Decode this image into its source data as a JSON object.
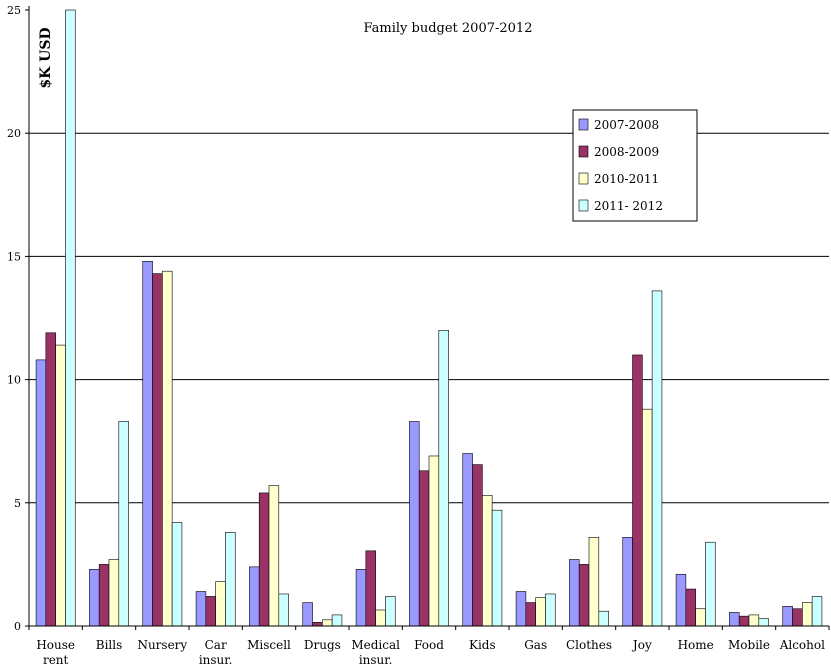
{
  "chart_data": {
    "type": "bar",
    "title": "Family budget 2007-2012",
    "xlabel": "",
    "ylabel": "$K USD",
    "ylim": [
      0,
      25
    ],
    "yticks": [
      0,
      5,
      10,
      15,
      20,
      25
    ],
    "grid": true,
    "legend_position": "top-right",
    "categories": [
      [
        "House",
        "rent"
      ],
      [
        "Bills"
      ],
      [
        "Nursery"
      ],
      [
        "Car",
        "insur."
      ],
      [
        "Miscell"
      ],
      [
        "Drugs"
      ],
      [
        "Medical",
        "insur."
      ],
      [
        "Food"
      ],
      [
        "Kids"
      ],
      [
        "Gas"
      ],
      [
        "Clothes"
      ],
      [
        "Joy"
      ],
      [
        "Home"
      ],
      [
        "Mobile"
      ],
      [
        "Alcohol"
      ]
    ],
    "series": [
      {
        "name": "2007-2008",
        "color": "#9999ff",
        "values": [
          10.8,
          2.3,
          14.8,
          1.4,
          2.4,
          0.95,
          2.3,
          8.3,
          7.0,
          1.4,
          2.7,
          3.6,
          2.1,
          0.55,
          0.8
        ]
      },
      {
        "name": "2008-2009",
        "color": "#993366",
        "values": [
          11.9,
          2.5,
          14.3,
          1.2,
          5.4,
          0.15,
          3.05,
          6.3,
          6.55,
          0.95,
          2.5,
          11.0,
          1.5,
          0.4,
          0.7
        ]
      },
      {
        "name": "2010-2011",
        "color": "#ffffcc",
        "values": [
          11.4,
          2.7,
          14.4,
          1.8,
          5.7,
          0.25,
          0.65,
          6.9,
          5.3,
          1.15,
          3.6,
          8.8,
          0.7,
          0.45,
          0.95
        ]
      },
      {
        "name": "2011- 2012",
        "color": "#ccffff",
        "values": [
          25.0,
          8.3,
          4.2,
          3.8,
          1.3,
          0.45,
          1.2,
          12.0,
          4.7,
          1.3,
          0.6,
          13.6,
          3.4,
          0.3,
          1.2
        ]
      }
    ]
  }
}
